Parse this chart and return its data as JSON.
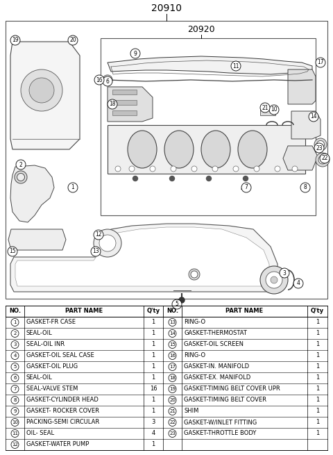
{
  "title": "20910",
  "subtitle": "20920",
  "bg_color": "#ffffff",
  "text_color": "#000000",
  "parts_left": [
    {
      "no": 1,
      "name": "GASKET-FR CASE",
      "qty": "1"
    },
    {
      "no": 2,
      "name": "SEAL-OIL",
      "qty": "1"
    },
    {
      "no": 3,
      "name": "SEAL-OIL INR",
      "qty": "1"
    },
    {
      "no": 4,
      "name": "GASKET-OIL SEAL CASE",
      "qty": "1"
    },
    {
      "no": 5,
      "name": "GASKET-OIL PLUG",
      "qty": "1"
    },
    {
      "no": 6,
      "name": "SEAL-OIL",
      "qty": "1"
    },
    {
      "no": 7,
      "name": "SEAL-VALVE STEM",
      "qty": "16"
    },
    {
      "no": 8,
      "name": "GASKET-CYLINDER HEAD",
      "qty": "1"
    },
    {
      "no": 9,
      "name": "GASKET- ROCKER COVER",
      "qty": "1"
    },
    {
      "no": 10,
      "name": "PACKING-SEMI CIRCULAR",
      "qty": "3"
    },
    {
      "no": 11,
      "name": "OIL- SEAL",
      "qty": "4"
    },
    {
      "no": 12,
      "name": "GASKET-WATER PUMP",
      "qty": "1"
    }
  ],
  "parts_right": [
    {
      "no": 13,
      "name": "RING-O",
      "qty": "1"
    },
    {
      "no": 14,
      "name": "GASKET-THERMOSTAT",
      "qty": "1"
    },
    {
      "no": 15,
      "name": "GASKET-OIL SCREEN",
      "qty": "1"
    },
    {
      "no": 16,
      "name": "RING-O",
      "qty": "1"
    },
    {
      "no": 17,
      "name": "GASKET-IN. MANIFOLD",
      "qty": "1"
    },
    {
      "no": 18,
      "name": "GASKET-EX. MANIFOLD",
      "qty": "1"
    },
    {
      "no": 19,
      "name": "GASKET-TIMING BELT COVER UPR",
      "qty": "1"
    },
    {
      "no": 20,
      "name": "GASKET-TIMING BELT COVER",
      "qty": "1"
    },
    {
      "no": 21,
      "name": "SHIM",
      "qty": "1"
    },
    {
      "no": 22,
      "name": "GASKET-W/INLET FITTING",
      "qty": "1"
    },
    {
      "no": 23,
      "name": "GASKET-THROTTLE BODY",
      "qty": "1"
    }
  ]
}
